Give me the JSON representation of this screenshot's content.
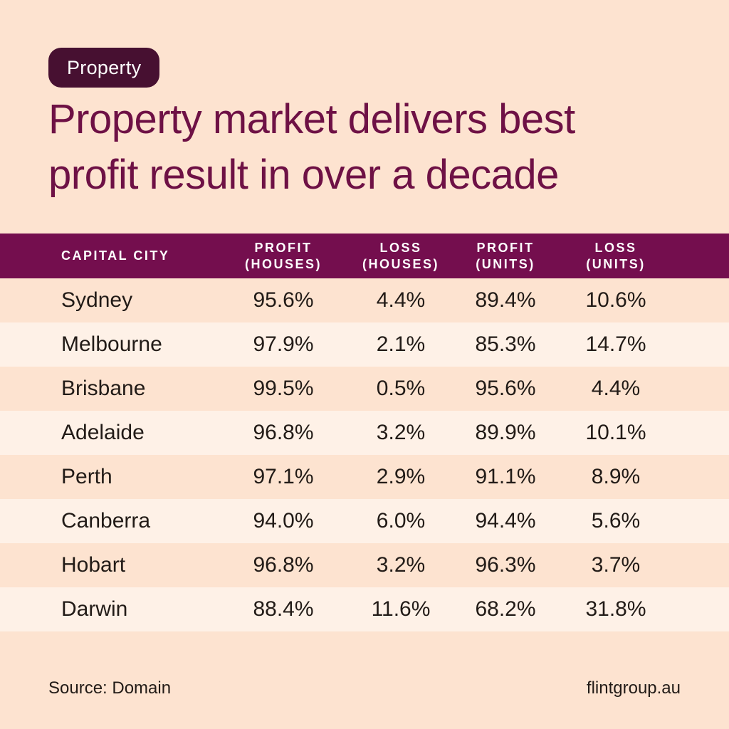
{
  "badge": {
    "label": "Property"
  },
  "title": {
    "line1": "Property market delivers best",
    "line2": "profit result in over a decade"
  },
  "table": {
    "header": {
      "col1": "Capital city",
      "col2_line1": "Profit",
      "col2_line2": "(Houses)",
      "col3_line1": "Loss",
      "col3_line2": "(Houses)",
      "col4_line1": "Profit",
      "col4_line2": "(Units)",
      "col5_line1": "Loss",
      "col5_line2": "(Units)"
    }
  },
  "footer": {
    "source": "Source: Domain",
    "website": "flintgroup.au"
  },
  "colors": {
    "bg": "#fde3d0",
    "row-alt": "#fef1e7",
    "header-bg": "#740e4e",
    "header-text": "#ffffff",
    "badge-bg": "#471031",
    "title-color": "#6e1145",
    "text-color": "#221b17"
  },
  "chart_data": {
    "type": "table",
    "title": "Property market delivers best profit result in over a decade",
    "category": "Property",
    "columns": [
      "Capital city",
      "Profit (houses)",
      "Loss (houses)",
      "Profit (units)",
      "Loss (units)"
    ],
    "rows": [
      {
        "city": "Sydney",
        "profit_houses": "95.6%",
        "loss_houses": "4.4%",
        "profit_units": "89.4%",
        "loss_units": "10.6%"
      },
      {
        "city": "Melbourne",
        "profit_houses": "97.9%",
        "loss_houses": "2.1%",
        "profit_units": "85.3%",
        "loss_units": "14.7%"
      },
      {
        "city": "Brisbane",
        "profit_houses": "99.5%",
        "loss_houses": "0.5%",
        "profit_units": "95.6%",
        "loss_units": "4.4%"
      },
      {
        "city": "Adelaide",
        "profit_houses": "96.8%",
        "loss_houses": "3.2%",
        "profit_units": "89.9%",
        "loss_units": "10.1%"
      },
      {
        "city": "Perth",
        "profit_houses": "97.1%",
        "loss_houses": "2.9%",
        "profit_units": "91.1%",
        "loss_units": "8.9%"
      },
      {
        "city": "Canberra",
        "profit_houses": "94.0%",
        "loss_houses": "6.0%",
        "profit_units": "94.4%",
        "loss_units": "5.6%"
      },
      {
        "city": "Hobart",
        "profit_houses": "96.8%",
        "loss_houses": "3.2%",
        "profit_units": "96.3%",
        "loss_units": "3.7%"
      },
      {
        "city": "Darwin",
        "profit_houses": "88.4%",
        "loss_houses": "11.6%",
        "profit_units": "68.2%",
        "loss_units": "31.8%"
      }
    ],
    "source": "Domain"
  }
}
